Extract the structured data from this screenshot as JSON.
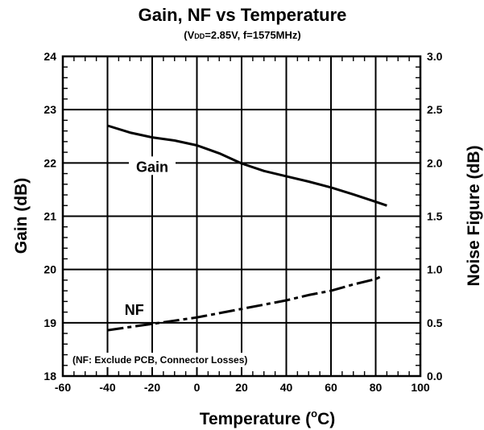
{
  "chart_data": {
    "type": "line",
    "title": "Gain, NF vs Temperature",
    "subtitle": "(VDD=2.85V, f=1575MHz)",
    "xlabel": "Temperature (°C)",
    "ylabel_left": "Gain (dB)",
    "ylabel_right": "Noise Figure (dB)",
    "xlim": [
      -60,
      100
    ],
    "ylim_left": [
      18,
      24
    ],
    "ylim_right": [
      0.0,
      3.0
    ],
    "x_ticks": [
      "-60",
      "-40",
      "-20",
      "0",
      "20",
      "40",
      "60",
      "80",
      "100"
    ],
    "y_left_ticks": [
      "18",
      "19",
      "20",
      "21",
      "22",
      "23",
      "24"
    ],
    "y_right_ticks": [
      "0.0",
      "0.5",
      "1.0",
      "1.5",
      "2.0",
      "2.5",
      "3.0"
    ],
    "grid": true,
    "series": [
      {
        "name": "Gain",
        "axis": "left",
        "style": "solid",
        "x": [
          -40,
          -30,
          -20,
          -10,
          0,
          10,
          20,
          30,
          40,
          50,
          60,
          70,
          80,
          85
        ],
        "y": [
          22.7,
          22.57,
          22.48,
          22.42,
          22.33,
          22.18,
          21.99,
          21.85,
          21.75,
          21.65,
          21.54,
          21.41,
          21.27,
          21.2
        ]
      },
      {
        "name": "NF",
        "axis": "right",
        "style": "dashed",
        "x": [
          -40,
          -30,
          -20,
          -10,
          0,
          10,
          20,
          30,
          40,
          50,
          60,
          70,
          80,
          82
        ],
        "y": [
          0.43,
          0.46,
          0.49,
          0.52,
          0.55,
          0.59,
          0.63,
          0.67,
          0.71,
          0.76,
          0.8,
          0.86,
          0.91,
          0.93
        ]
      }
    ],
    "annotations": {
      "gain_label": "Gain",
      "nf_label": "NF",
      "note": "(NF: Exclude PCB, Connector Losses)"
    }
  }
}
